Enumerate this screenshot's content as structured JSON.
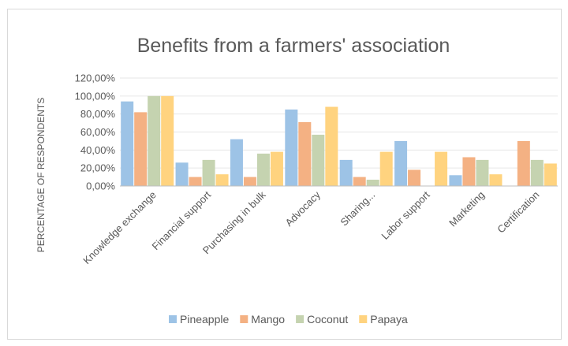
{
  "chart_data": {
    "type": "bar",
    "title": "Benefits from a farmers' association",
    "xlabel": "",
    "ylabel": "PERCENTAGE OF RESPONDENTS",
    "ylim": [
      0,
      1.2
    ],
    "yticks": [
      "0,00%",
      "20,00%",
      "40,00%",
      "60,00%",
      "80,00%",
      "100,00%",
      "120,00%"
    ],
    "grid": true,
    "legend_position": "bottom",
    "categories": [
      "Knowledge exchange",
      "Financial support",
      "Purchasing in bulk",
      "Advocacy",
      "Sharing...",
      "Labor support",
      "Marketing",
      "Certification"
    ],
    "series": [
      {
        "name": "Pineapple",
        "color": "#9dc3e6",
        "values": [
          0.94,
          0.26,
          0.52,
          0.85,
          0.29,
          0.5,
          0.12,
          0.0
        ]
      },
      {
        "name": "Mango",
        "color": "#f4b183",
        "values": [
          0.82,
          0.1,
          0.1,
          0.71,
          0.1,
          0.18,
          0.32,
          0.5
        ]
      },
      {
        "name": "Coconut",
        "color": "#c5d3b0",
        "values": [
          1.0,
          0.29,
          0.36,
          0.57,
          0.07,
          0.0,
          0.29,
          0.29
        ]
      },
      {
        "name": "Papaya",
        "color": "#ffd37f",
        "values": [
          1.0,
          0.13,
          0.38,
          0.88,
          0.38,
          0.38,
          0.13,
          0.25
        ]
      }
    ]
  }
}
